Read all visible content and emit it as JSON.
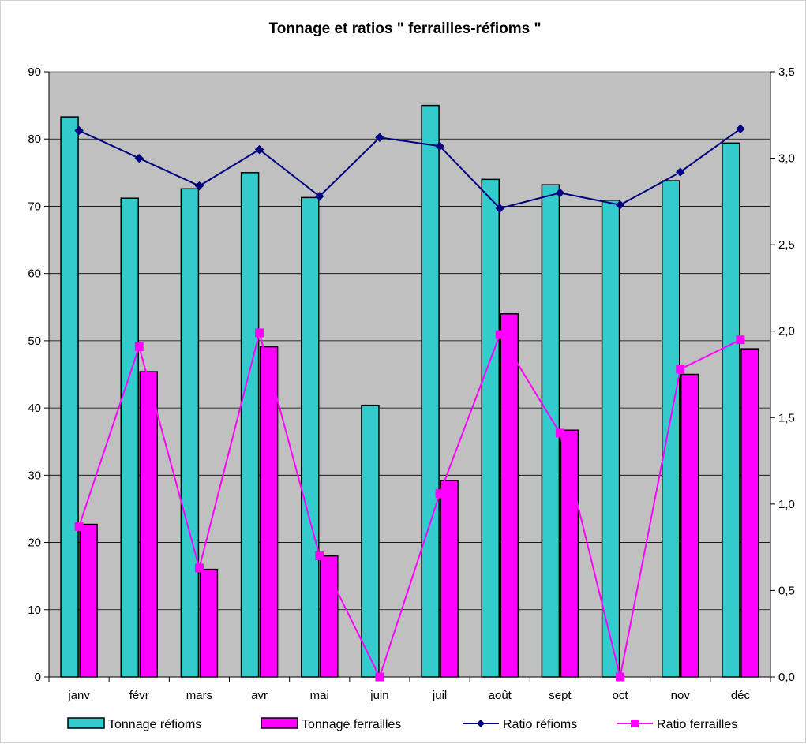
{
  "chart_data": {
    "type": "bar",
    "title": "Tonnage et ratios \" ferrailles-réfioms \"",
    "categories": [
      "janv",
      "févr",
      "mars",
      "avr",
      "mai",
      "juin",
      "juil",
      "août",
      "sept",
      "oct",
      "nov",
      "déc"
    ],
    "y_axis_left": {
      "min": 0,
      "max": 90,
      "ticks": [
        "0",
        "10",
        "20",
        "30",
        "40",
        "50",
        "60",
        "70",
        "80",
        "90"
      ]
    },
    "y_axis_right": {
      "min": 0,
      "max": 3.5,
      "ticks": [
        "0,0",
        "0,5",
        "1,0",
        "1,5",
        "2,0",
        "2,5",
        "3,0",
        "3,5"
      ]
    },
    "grid": true,
    "legend_position": "bottom",
    "series": [
      {
        "name": "Tonnage réfioms",
        "type": "bar",
        "axis": "left",
        "color": "#33cccc",
        "values": [
          83.3,
          71.2,
          72.6,
          75.0,
          71.3,
          40.4,
          85.0,
          74.0,
          73.2,
          70.9,
          73.8,
          79.4
        ]
      },
      {
        "name": "Tonnage ferrailles",
        "type": "bar",
        "axis": "left",
        "color": "#ff00ff",
        "values": [
          22.7,
          45.4,
          16.0,
          49.1,
          18.0,
          0,
          29.2,
          54.0,
          36.7,
          0,
          45.0,
          48.8
        ]
      },
      {
        "name": "Ratio réfioms",
        "type": "line",
        "axis": "right",
        "color": "#000080",
        "marker": "diamond",
        "values": [
          3.16,
          3.0,
          2.84,
          3.05,
          2.78,
          3.12,
          3.07,
          2.71,
          2.8,
          2.73,
          2.92,
          3.17
        ]
      },
      {
        "name": "Ratio ferrailles",
        "type": "line",
        "axis": "right",
        "color": "#ff00ff",
        "marker": "square",
        "values": [
          0.87,
          1.91,
          0.63,
          1.99,
          0.7,
          0.0,
          1.06,
          1.98,
          1.41,
          0.0,
          1.78,
          1.95
        ]
      }
    ],
    "colors": {
      "plot_background": "#c0c0c0",
      "gridline": "#000000"
    }
  }
}
